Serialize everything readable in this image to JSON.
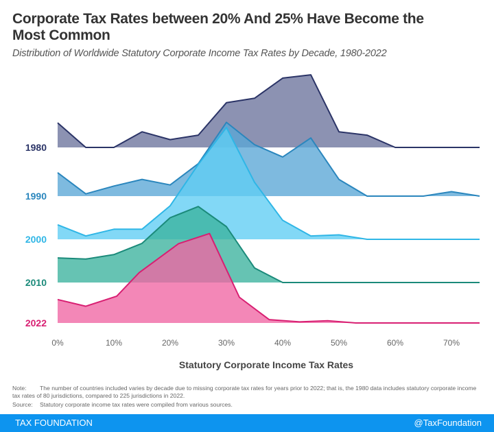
{
  "chart_data": {
    "type": "area",
    "subtype": "ridgeline",
    "title": "Corporate Tax Rates between 20% And 25% Have Become the Most Common",
    "subtitle": "Distribution of Worldwide Statutory Corporate Income Tax Rates by Decade, 1980-2022",
    "xlabel": "Statutory Corporate Income Tax Rates",
    "xlim": [
      0,
      75
    ],
    "x_ticks": [
      "0%",
      "10%",
      "20%",
      "30%",
      "40%",
      "50%",
      "60%",
      "70%"
    ],
    "x_tick_values": [
      0,
      10,
      20,
      30,
      40,
      50,
      60,
      70
    ],
    "y_scale": "relative density (unlabeled)",
    "grid": false,
    "series": [
      {
        "name": "1980",
        "line_color": "#2b3467",
        "fill_color": "#6b739c",
        "x": [
          0,
          5,
          10,
          15,
          20,
          25,
          30,
          35,
          40,
          45,
          50,
          55,
          60,
          65,
          70,
          75
        ],
        "values": [
          22,
          0,
          0,
          14,
          7,
          11,
          40,
          44,
          62,
          65,
          14,
          11,
          0,
          0,
          0,
          0
        ]
      },
      {
        "name": "1990",
        "line_color": "#2a86bd",
        "fill_color": "#5aa6d6",
        "x": [
          0,
          5,
          10,
          15,
          20,
          25,
          30,
          35,
          40,
          45,
          50,
          55,
          60,
          65,
          70,
          75
        ],
        "values": [
          21,
          2,
          9,
          15,
          10,
          29,
          66,
          46,
          35,
          52,
          15,
          0,
          0,
          0,
          4,
          0
        ]
      },
      {
        "name": "2000",
        "line_color": "#2fb6e6",
        "fill_color": "#5fcdf3",
        "x": [
          0,
          5,
          10,
          15,
          20,
          25,
          30,
          35,
          40,
          45,
          50,
          55,
          60,
          65,
          70,
          75
        ],
        "values": [
          13,
          3,
          9,
          9,
          30,
          67,
          100,
          51,
          17,
          3,
          4,
          0,
          0,
          0,
          0,
          0
        ]
      },
      {
        "name": "2010",
        "line_color": "#1b8a7a",
        "fill_color": "#3bb29d",
        "x": [
          0,
          5,
          10,
          15,
          20,
          25,
          30,
          35,
          40,
          45,
          50,
          55,
          60,
          65,
          70,
          75
        ],
        "values": [
          22,
          21,
          25,
          35,
          58,
          68,
          50,
          13,
          0,
          0,
          0,
          0,
          0,
          0,
          0,
          0
        ]
      },
      {
        "name": "2022",
        "line_color": "#d81f72",
        "fill_color": "#f065a3",
        "x": [
          0,
          5,
          10.5,
          14.5,
          21.5,
          27,
          32.3,
          37.6,
          43,
          48,
          53,
          75
        ],
        "values": [
          21,
          15,
          24,
          45,
          71,
          80,
          23,
          3,
          1,
          2,
          0,
          0
        ]
      }
    ]
  },
  "notes": {
    "note_label": "Note:",
    "note_text": "The number of countries included varies by decade due to missing corporate tax rates for years prior to 2022; that is, the 1980 data includes statutory corporate income tax rates of 80 jurisdictions, compared to 225 jurisdictions in 2022.",
    "source_label": "Source:",
    "source_text": "Statutory corporate income tax rates were compiled from various sources."
  },
  "footer": {
    "brand": "TAX FOUNDATION",
    "handle": "@TaxFoundation",
    "color": "#0d94ef"
  }
}
